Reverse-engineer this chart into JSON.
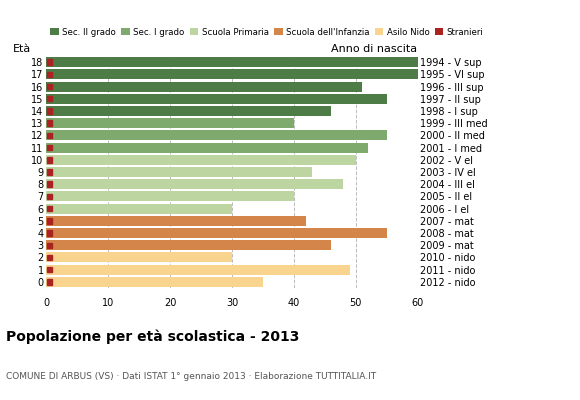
{
  "ages": [
    18,
    17,
    16,
    15,
    14,
    13,
    12,
    11,
    10,
    9,
    8,
    7,
    6,
    5,
    4,
    3,
    2,
    1,
    0
  ],
  "anno_nascita": [
    "1994 - V sup",
    "1995 - VI sup",
    "1996 - III sup",
    "1997 - II sup",
    "1998 - I sup",
    "1999 - III med",
    "2000 - II med",
    "2001 - I med",
    "2002 - V el",
    "2003 - IV el",
    "2004 - III el",
    "2005 - II el",
    "2006 - I el",
    "2007 - mat",
    "2008 - mat",
    "2009 - mat",
    "2010 - nido",
    "2011 - nido",
    "2012 - nido"
  ],
  "values": [
    60,
    60,
    51,
    55,
    46,
    40,
    55,
    52,
    50,
    43,
    48,
    40,
    30,
    42,
    55,
    46,
    30,
    49,
    35
  ],
  "categories": [
    "Sec. II grado",
    "Sec. I grado",
    "Scuola Primaria",
    "Scuola dell'Infanzia",
    "Asilo Nido"
  ],
  "bar_colors": {
    "Sec. II grado": "#4e7c47",
    "Sec. I grado": "#7eaa6e",
    "Scuola Primaria": "#bdd5a0",
    "Scuola dell'Infanzia": "#d4854a",
    "Asilo Nido": "#f8d48e"
  },
  "stranieri_color": "#aa2222",
  "age_to_category": {
    "18": "Sec. II grado",
    "17": "Sec. II grado",
    "16": "Sec. II grado",
    "15": "Sec. II grado",
    "14": "Sec. II grado",
    "13": "Sec. I grado",
    "12": "Sec. I grado",
    "11": "Sec. I grado",
    "10": "Scuola Primaria",
    "9": "Scuola Primaria",
    "8": "Scuola Primaria",
    "7": "Scuola Primaria",
    "6": "Scuola Primaria",
    "5": "Scuola dell'Infanzia",
    "4": "Scuola dell'Infanzia",
    "3": "Scuola dell'Infanzia",
    "2": "Asilo Nido",
    "1": "Asilo Nido",
    "0": "Asilo Nido"
  },
  "title": "Popolazione per età scolastica - 2013",
  "subtitle": "COMUNE DI ARBUS (VS) · Dati ISTAT 1° gennaio 2013 · Elaborazione TUTTITALIA.IT",
  "label_eta": "Età",
  "label_anno": "Anno di nascita",
  "xlim": [
    0,
    60
  ],
  "xticks": [
    0,
    10,
    20,
    30,
    40,
    50,
    60
  ],
  "background_color": "#ffffff",
  "grid_color": "#bbbbbb"
}
